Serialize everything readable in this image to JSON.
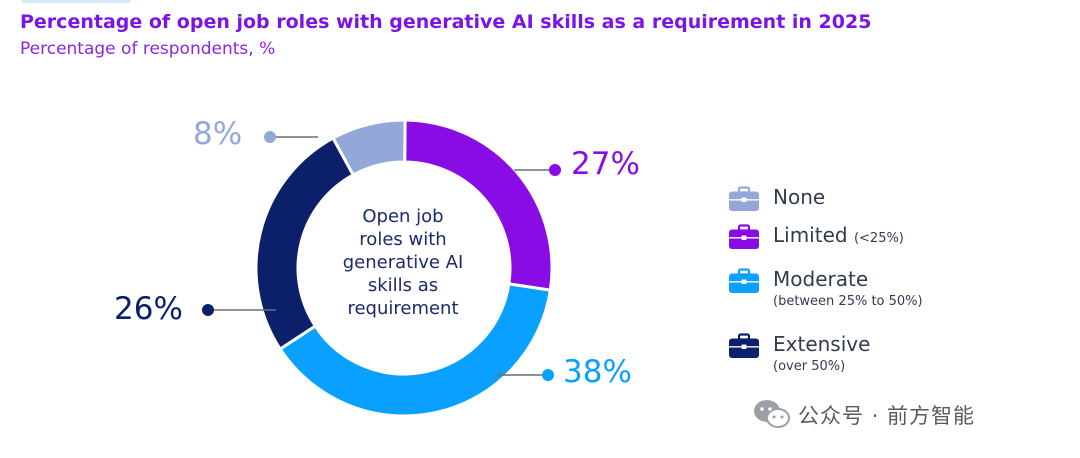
{
  "header": {
    "title": "Percentage of open job roles with generative AI skills as a requirement in 2025",
    "subtitle": "Percentage of respondents, %"
  },
  "center_label": [
    "Open job",
    "roles with",
    "generative AI",
    "skills as",
    "requirement"
  ],
  "chart_data": {
    "type": "pie",
    "title": "Percentage of open job roles with generative AI skills as a requirement in 2025",
    "subtitle": "Percentage of respondents, %",
    "categories": [
      "None",
      "Limited",
      "Moderate",
      "Extensive"
    ],
    "values": [
      8,
      27,
      38,
      26
    ],
    "labels": [
      "8%",
      "27%",
      "38%",
      "26%"
    ],
    "colors": [
      "#93a7d8",
      "#8a0ce4",
      "#0aa0ff",
      "#0c1f6b"
    ],
    "legend_placement": "right"
  },
  "legend": [
    {
      "name": "None",
      "note": "",
      "color": "#93a7d8",
      "icon": "briefcase-icon"
    },
    {
      "name": "Limited",
      "note": "(<25%)",
      "color": "#8a0ce4",
      "icon": "briefcase-icon"
    },
    {
      "name": "Moderate",
      "note": "(between 25% to 50%)",
      "color": "#0aa0ff",
      "icon": "briefcase-icon"
    },
    {
      "name": "Extensive",
      "note": "(over 50%)",
      "color": "#0c1f6b",
      "icon": "briefcase-icon"
    }
  ],
  "watermark": {
    "text": "公众号 · 前方智能",
    "icon": "wechat-icon"
  }
}
